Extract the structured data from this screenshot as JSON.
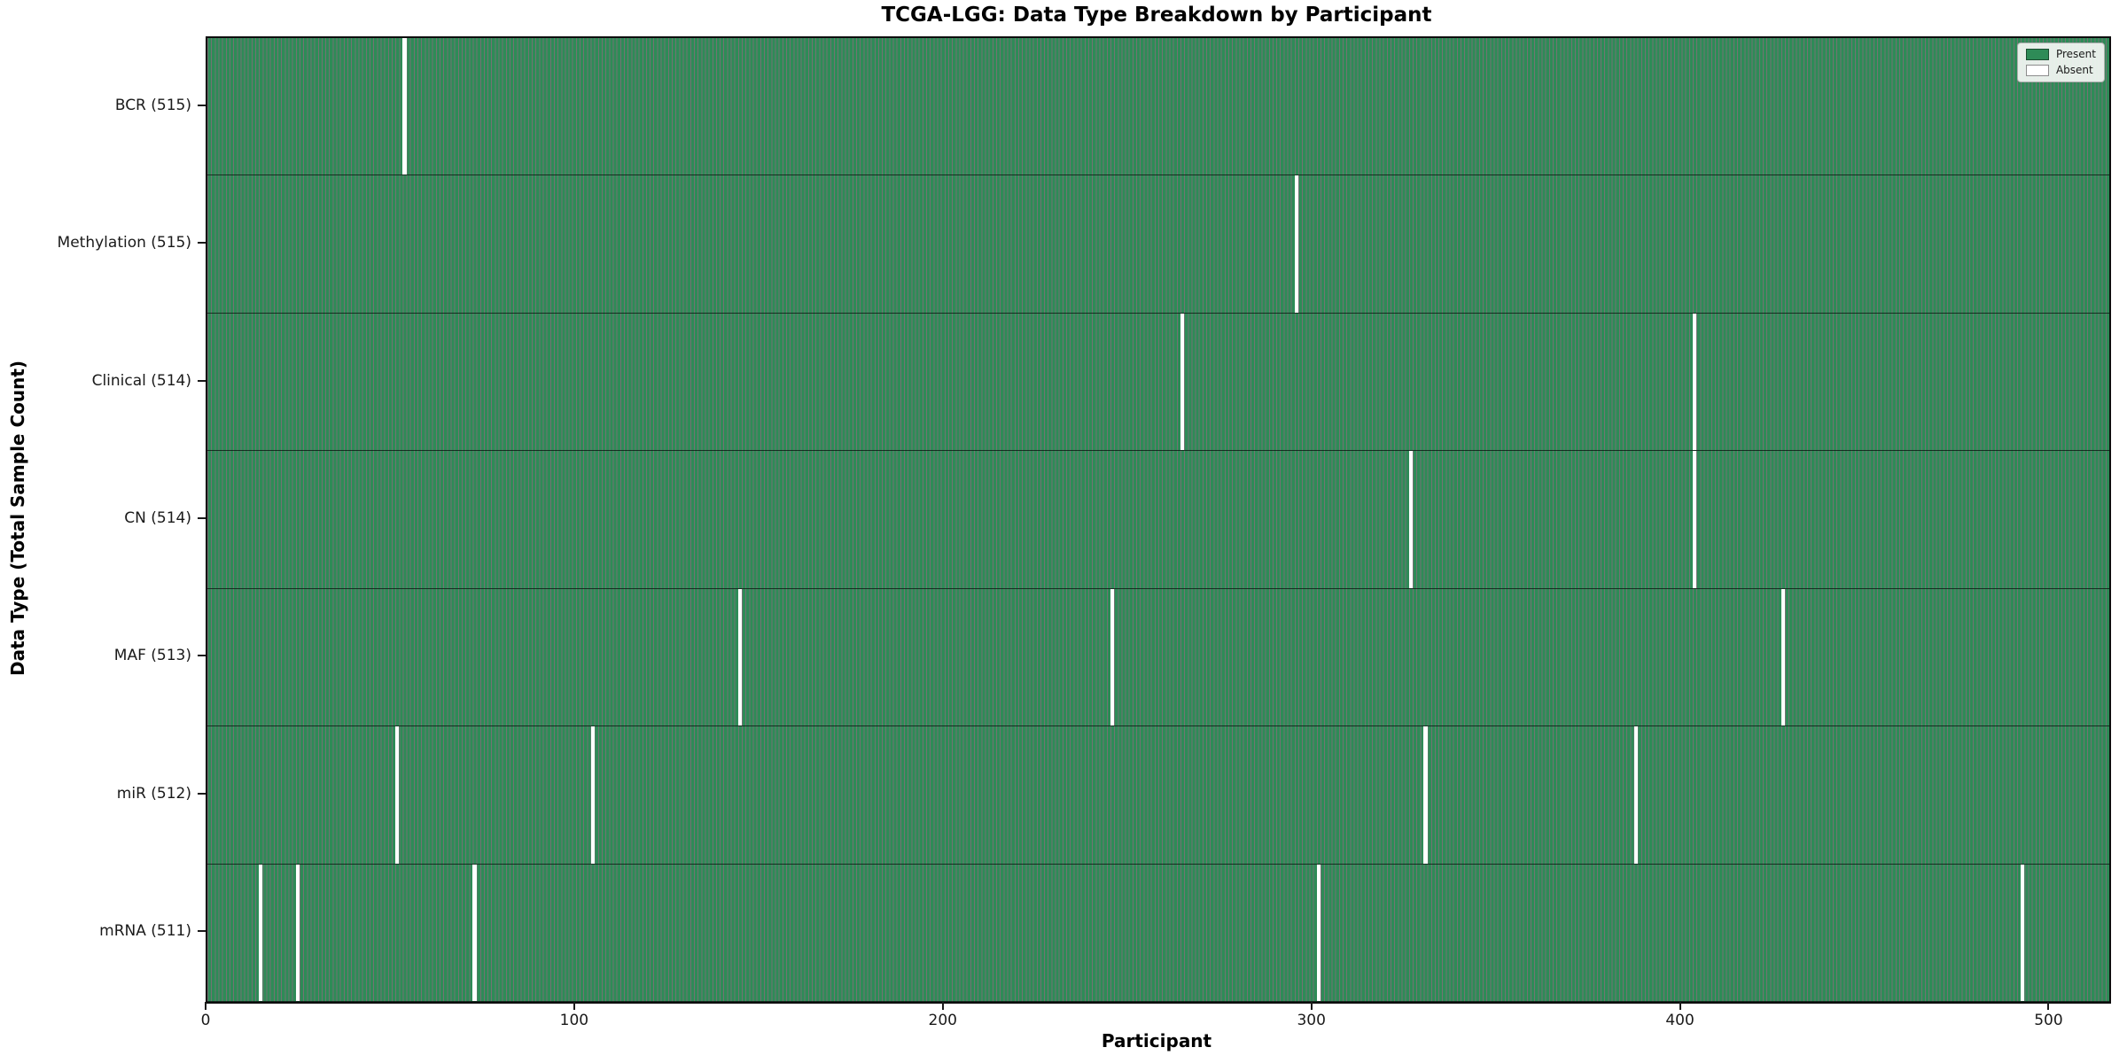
{
  "chart_data": {
    "type": "heatmap",
    "title": "TCGA-LGG: Data Type Breakdown by Participant",
    "xlabel": "Participant",
    "ylabel": "Data Type (Total Sample Count)",
    "n_participants": 516,
    "x_range": [
      0,
      516
    ],
    "x_ticks": [
      0,
      100,
      200,
      300,
      400,
      500
    ],
    "x_tick_labels": [
      "0",
      "100",
      "200",
      "300",
      "400",
      "500"
    ],
    "grid": false,
    "legend_position": "upper right",
    "legend": [
      {
        "label": "Present",
        "color": "#2e8b57"
      },
      {
        "label": "Absent",
        "color": "#ffffff"
      }
    ],
    "colors": {
      "present": "#2e8b57",
      "absent": "#ffffff",
      "bar_edge": "rgba(0,0,0,0.55)",
      "axis": "#0d0d0d"
    },
    "rows": [
      {
        "data_type": "BCR",
        "label": "BCR (515)",
        "present_count": 515,
        "absent_count": 1,
        "absent_participant_indices": [
          53
        ]
      },
      {
        "data_type": "Methylation",
        "label": "Methylation (515)",
        "present_count": 515,
        "absent_count": 1,
        "absent_participant_indices": [
          295
        ]
      },
      {
        "data_type": "Clinical",
        "label": "Clinical (514)",
        "present_count": 514,
        "absent_count": 2,
        "absent_participant_indices": [
          264,
          403
        ]
      },
      {
        "data_type": "CN",
        "label": "CN (514)",
        "present_count": 514,
        "absent_count": 2,
        "absent_participant_indices": [
          326,
          403
        ]
      },
      {
        "data_type": "MAF",
        "label": "MAF (513)",
        "present_count": 513,
        "absent_count": 3,
        "absent_participant_indices": [
          144,
          245,
          427
        ]
      },
      {
        "data_type": "miR",
        "label": "miR (512)",
        "present_count": 512,
        "absent_count": 4,
        "absent_participant_indices": [
          51,
          104,
          330,
          387
        ]
      },
      {
        "data_type": "mRNA",
        "label": "mRNA (511)",
        "present_count": 511,
        "absent_count": 5,
        "absent_participant_indices": [
          14,
          24,
          72,
          301,
          492
        ]
      }
    ]
  }
}
